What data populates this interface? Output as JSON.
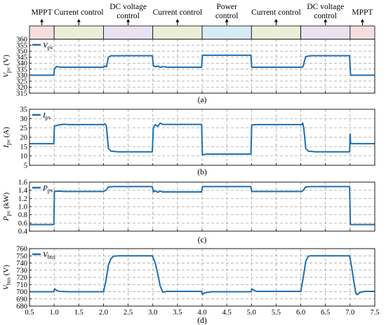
{
  "modes": [
    {
      "label": "MPPT",
      "label2": "",
      "start": 0.5,
      "end": 1.0,
      "color": "#f6dede"
    },
    {
      "label": "Current control",
      "label2": "",
      "start": 1.0,
      "end": 2.0,
      "color": "#e9efd9"
    },
    {
      "label": "DC voltage",
      "label2": "control",
      "start": 2.0,
      "end": 3.0,
      "color": "#e9e3f1"
    },
    {
      "label": "Current control",
      "label2": "",
      "start": 3.0,
      "end": 4.0,
      "color": "#e9efd9"
    },
    {
      "label": "Power",
      "label2": "control",
      "start": 4.0,
      "end": 5.0,
      "color": "#d6ecf3"
    },
    {
      "label": "Current control",
      "label2": "",
      "start": 5.0,
      "end": 6.0,
      "color": "#e9efd9"
    },
    {
      "label": "DC voltage",
      "label2": "control",
      "start": 6.0,
      "end": 7.0,
      "color": "#e9e3f1"
    },
    {
      "label": "MPPT",
      "label2": "",
      "start": 7.0,
      "end": 7.5,
      "color": "#f6dede"
    }
  ],
  "chart_data": [
    {
      "type": "line",
      "caption": "(a)",
      "ylabel": "V",
      "ylabel_sub": "pv",
      "ylabel_unit": " (V)",
      "legend": {
        "main": "V",
        "sub": "pv"
      },
      "xlim": [
        0.5,
        7.5
      ],
      "ylim": [
        315,
        360
      ],
      "yticks": [
        315,
        320,
        325,
        330,
        335,
        340,
        345,
        350,
        355,
        360
      ],
      "series": [
        {
          "color": "#1f6fb0",
          "points": [
            [
              0.5,
              330
            ],
            [
              0.995,
              330
            ],
            [
              1.005,
              335.5
            ],
            [
              1.05,
              337.2
            ],
            [
              1.1,
              336.8
            ],
            [
              1.2,
              336.6
            ],
            [
              1.5,
              336.6
            ],
            [
              2.0,
              336.6
            ],
            [
              2.03,
              337.6
            ],
            [
              2.06,
              337.0
            ],
            [
              2.08,
              341
            ],
            [
              2.1,
              345
            ],
            [
              2.15,
              346.2
            ],
            [
              2.5,
              346.3
            ],
            [
              2.99,
              346.3
            ],
            [
              3.01,
              338
            ],
            [
              3.05,
              337.0
            ],
            [
              3.1,
              337.6
            ],
            [
              3.15,
              336.6
            ],
            [
              3.2,
              337.1
            ],
            [
              3.3,
              336.6
            ],
            [
              3.99,
              336.6
            ],
            [
              4.005,
              346.6
            ],
            [
              4.5,
              346.6
            ],
            [
              4.99,
              346.6
            ],
            [
              5.005,
              336.6
            ],
            [
              5.5,
              336.6
            ],
            [
              6.03,
              336.6
            ],
            [
              6.05,
              337.5
            ],
            [
              6.07,
              341
            ],
            [
              6.1,
              345.5
            ],
            [
              6.2,
              346.3
            ],
            [
              6.99,
              346.3
            ],
            [
              7.0,
              337
            ],
            [
              7.01,
              330
            ],
            [
              7.5,
              330
            ]
          ]
        }
      ]
    },
    {
      "type": "line",
      "caption": "(b)",
      "ylabel": "I",
      "ylabel_sub": "pv",
      "ylabel_unit": " (A)",
      "legend": {
        "main": "I",
        "sub": "pv"
      },
      "xlim": [
        0.5,
        7.5
      ],
      "ylim": [
        5,
        35
      ],
      "yticks": [
        5,
        10,
        15,
        20,
        25,
        30,
        35
      ],
      "series": [
        {
          "color": "#1f6fb0",
          "points": [
            [
              0.5,
              16.6
            ],
            [
              0.995,
              16.6
            ],
            [
              1.005,
              26
            ],
            [
              1.1,
              26.6
            ],
            [
              1.2,
              27
            ],
            [
              1.3,
              26.8
            ],
            [
              2.0,
              26.8
            ],
            [
              2.03,
              27.2
            ],
            [
              2.06,
              26
            ],
            [
              2.08,
              20
            ],
            [
              2.1,
              14
            ],
            [
              2.15,
              12.6
            ],
            [
              2.3,
              12.2
            ],
            [
              2.99,
              12.2
            ],
            [
              3.01,
              25
            ],
            [
              3.05,
              26.8
            ],
            [
              3.1,
              25.8
            ],
            [
              3.15,
              27.6
            ],
            [
              3.2,
              26.9
            ],
            [
              3.99,
              26.9
            ],
            [
              4.005,
              10.6
            ],
            [
              4.1,
              11
            ],
            [
              4.99,
              11
            ],
            [
              5.005,
              26.6
            ],
            [
              5.1,
              26.8
            ],
            [
              6.02,
              26.8
            ],
            [
              6.04,
              27.6
            ],
            [
              6.06,
              25
            ],
            [
              6.08,
              20
            ],
            [
              6.1,
              14
            ],
            [
              6.15,
              12.6
            ],
            [
              6.3,
              12.2
            ],
            [
              6.99,
              12.2
            ],
            [
              7.0,
              21.8
            ],
            [
              7.01,
              16.6
            ],
            [
              7.5,
              16.6
            ]
          ]
        }
      ]
    },
    {
      "type": "line",
      "caption": "(c)",
      "ylabel": "P",
      "ylabel_sub": "pv",
      "ylabel_unit": " (kW)",
      "legend": {
        "main": "P",
        "sub": "pv"
      },
      "xlim": [
        0.5,
        7.5
      ],
      "ylim": [
        0.4,
        1.6
      ],
      "yticks": [
        0.4,
        0.6,
        0.8,
        1.0,
        1.2,
        1.4,
        1.6
      ],
      "series": [
        {
          "color": "#1f6fb0",
          "points": [
            [
              0.5,
              0.56
            ],
            [
              0.995,
              0.56
            ],
            [
              1.005,
              1.37
            ],
            [
              1.1,
              1.38
            ],
            [
              1.2,
              1.37
            ],
            [
              2.0,
              1.37
            ],
            [
              2.03,
              1.39
            ],
            [
              2.06,
              1.41
            ],
            [
              2.1,
              1.48
            ],
            [
              2.2,
              1.49
            ],
            [
              2.99,
              1.49
            ],
            [
              3.01,
              1.36
            ],
            [
              3.05,
              1.39
            ],
            [
              3.1,
              1.35
            ],
            [
              3.15,
              1.38
            ],
            [
              3.2,
              1.36
            ],
            [
              3.99,
              1.36
            ],
            [
              4.005,
              1.49
            ],
            [
              4.99,
              1.49
            ],
            [
              5.005,
              1.37
            ],
            [
              6.02,
              1.37
            ],
            [
              6.05,
              1.4
            ],
            [
              6.1,
              1.48
            ],
            [
              6.2,
              1.49
            ],
            [
              6.99,
              1.49
            ],
            [
              7.005,
              0.56
            ],
            [
              7.5,
              0.56
            ]
          ]
        }
      ]
    },
    {
      "type": "line",
      "caption": "(d)",
      "ylabel": "V",
      "ylabel_sub": "bus",
      "ylabel_unit": " (V)",
      "legend": {
        "main": "V",
        "sub": "bus"
      },
      "xlim": [
        0.5,
        7.5
      ],
      "ylim": [
        680,
        760
      ],
      "yticks": [
        680,
        690,
        700,
        710,
        720,
        730,
        740,
        750,
        760
      ],
      "xticks": [
        0.5,
        1.0,
        1.5,
        2.0,
        2.5,
        3.0,
        3.5,
        4.0,
        4.5,
        5.0,
        5.5,
        6.0,
        6.5,
        7.0,
        7.5
      ],
      "series": [
        {
          "color": "#1f6fb0",
          "points": [
            [
              0.5,
              700
            ],
            [
              0.99,
              700
            ],
            [
              1.01,
              704
            ],
            [
              1.05,
              702
            ],
            [
              1.1,
              700.5
            ],
            [
              1.3,
              700
            ],
            [
              2.0,
              700
            ],
            [
              2.05,
              715
            ],
            [
              2.1,
              737
            ],
            [
              2.15,
              746
            ],
            [
              2.2,
              749.5
            ],
            [
              2.3,
              750
            ],
            [
              2.99,
              750
            ],
            [
              3.05,
              740
            ],
            [
              3.1,
              725
            ],
            [
              3.15,
              708
            ],
            [
              3.2,
              699.5
            ],
            [
              3.3,
              700.5
            ],
            [
              3.99,
              700.5
            ],
            [
              4.01,
              696
            ],
            [
              4.05,
              698.5
            ],
            [
              4.2,
              700
            ],
            [
              4.99,
              700
            ],
            [
              5.01,
              704
            ],
            [
              5.05,
              702
            ],
            [
              5.1,
              700.5
            ],
            [
              6.0,
              700.5
            ],
            [
              6.05,
              720
            ],
            [
              6.1,
              742
            ],
            [
              6.15,
              749.5
            ],
            [
              6.2,
              750
            ],
            [
              6.99,
              750
            ],
            [
              7.03,
              735
            ],
            [
              7.08,
              712
            ],
            [
              7.12,
              697
            ],
            [
              7.15,
              696
            ],
            [
              7.2,
              699
            ],
            [
              7.3,
              700.5
            ],
            [
              7.5,
              700.5
            ]
          ]
        }
      ]
    }
  ]
}
